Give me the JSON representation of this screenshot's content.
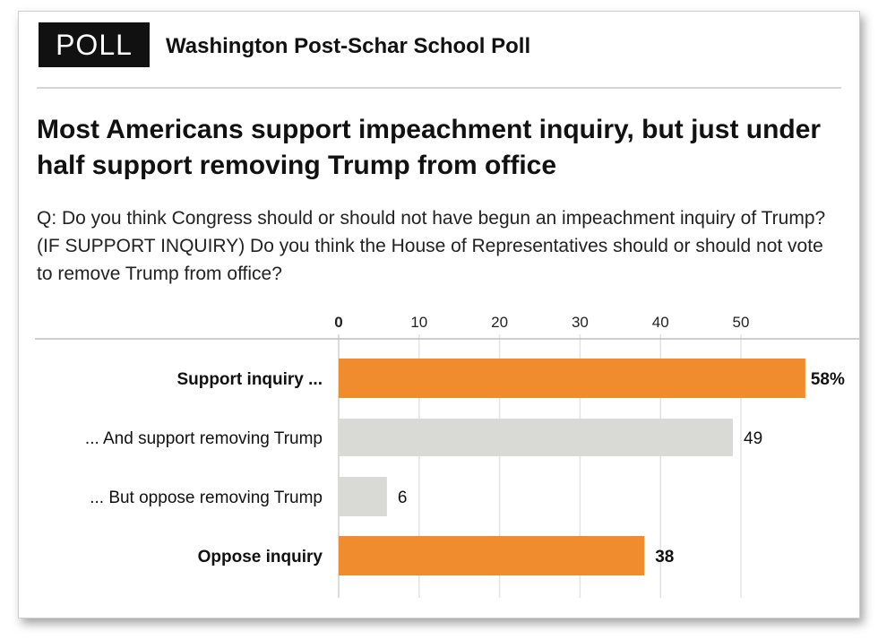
{
  "header": {
    "badge": "POLL",
    "source": "Washington Post-Schar School Poll"
  },
  "headline": "Most Americans support impeachment inquiry, but just under half support removing Trump from office",
  "question": "Q: Do you think Congress should or should not have begun an impeachment inquiry of Trump? (IF SUPPORT INQUIRY) Do you think the House of Representatives should or should not vote to remove Trump from office?",
  "chart_data": {
    "type": "bar",
    "orientation": "horizontal",
    "categories": [
      "Support inquiry ...",
      "... And support removing Trump",
      "... But oppose removing Trump",
      "Oppose inquiry"
    ],
    "values": [
      58,
      49,
      6,
      38
    ],
    "value_labels": [
      "58%",
      "49",
      "6",
      "38"
    ],
    "category_bold": [
      true,
      false,
      false,
      true
    ],
    "bar_colors": [
      "#f08c2d",
      "#d9d9d6",
      "#d9d9d6",
      "#f08c2d"
    ],
    "xticks": [
      0,
      10,
      20,
      30,
      40,
      50
    ],
    "xtick_labels": [
      "0",
      "10",
      "20",
      "30",
      "40",
      "50"
    ],
    "xlim": [
      0,
      58
    ],
    "grid": true,
    "gridline_color": "#e3e3e3",
    "title": "",
    "xlabel": "",
    "ylabel": ""
  }
}
